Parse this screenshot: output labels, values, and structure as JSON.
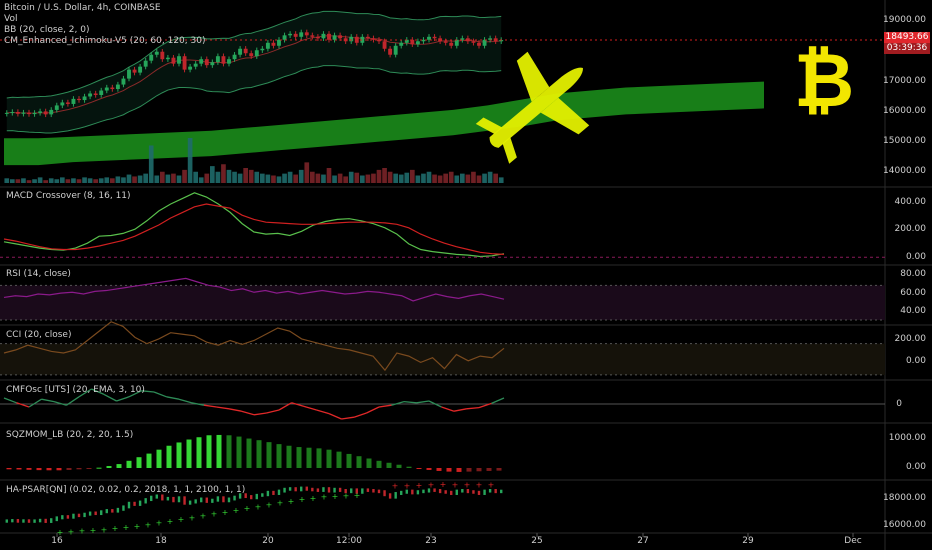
{
  "header": {
    "title": "Bitcoin / U.S. Dollar, 4h, COINBASE",
    "studies": [
      "Vol",
      "BB (20, close, 2, 0)",
      "CM_Enhanced_Ichimoku-V5 (20, 60, 120, 30)"
    ]
  },
  "price_tags": {
    "last_price": "18493.66",
    "countdown": "03:39:36"
  },
  "colors": {
    "background": "#000000",
    "up": "#26a65b",
    "down": "#c0262c",
    "cloud": "#1e9e1e",
    "bb": "#2e8b57",
    "macd": "#59c04c",
    "signal": "#d02020",
    "rsi": "#8b1a8b",
    "cci": "#7a4a1e",
    "cmf_pos": "#2e8b57",
    "cmf_neg": "#e02828",
    "plane": "#e4f000",
    "bitcoin_logo": "#f2e600"
  },
  "decorations": {
    "plane_icon": "airplane-icon",
    "logo_icon": "bitcoin-logo-icon",
    "logo_glyph": "₿"
  },
  "panes": {
    "macd": {
      "label": "MACD Crossover (8, 16, 11)",
      "ticks": [
        "400.00",
        "200.00",
        "0.00"
      ]
    },
    "rsi": {
      "label": "RSI (14, close)",
      "ticks": [
        "80.00",
        "60.00",
        "40.00"
      ]
    },
    "cci": {
      "label": "CCI (20, close)",
      "ticks": [
        "200.00",
        "0.00"
      ]
    },
    "cmf": {
      "label": "CMFOsc [UTS] (20, EMA, 3, 10)",
      "ticks": [
        "0"
      ]
    },
    "sqz": {
      "label": "SQZMOM_LB (20, 2, 20, 1.5)",
      "ticks": [
        "1000.00",
        "0.00"
      ]
    },
    "psar": {
      "label": "HA-PSAR[QN] (0.02, 0.02, 0.2, 2018, 1, 1, 2100, 1, 1)",
      "ticks": [
        "18000.00",
        "16000.00"
      ]
    }
  },
  "price_axis_ticks": [
    "19000.00",
    "18000.00",
    "17000.00",
    "16000.00",
    "15000.00",
    "14000.00"
  ],
  "x_axis_ticks": [
    "16",
    "18",
    "20",
    "12:00",
    "23",
    "25",
    "27",
    "29",
    "Dec"
  ],
  "chart_data": {
    "type": "candlestick",
    "title": "Bitcoin / U.S. Dollar, 4h, COINBASE",
    "x_ticks": [
      "16",
      "18",
      "20",
      "12:00",
      "23",
      "25",
      "27",
      "29",
      "Dec"
    ],
    "ylim": [
      13700,
      19700
    ],
    "closes": [
      16050,
      16080,
      16020,
      16060,
      16010,
      16050,
      16100,
      16000,
      16150,
      16300,
      16400,
      16350,
      16520,
      16480,
      16600,
      16700,
      16650,
      16800,
      16900,
      16850,
      17000,
      17200,
      17500,
      17400,
      17600,
      17800,
      18000,
      18100,
      17850,
      17900,
      17700,
      17950,
      17500,
      17600,
      17700,
      17850,
      17650,
      17750,
      17950,
      17700,
      17850,
      18000,
      18200,
      18050,
      17950,
      18150,
      18200,
      18400,
      18300,
      18500,
      18650,
      18700,
      18600,
      18750,
      18650,
      18600,
      18550,
      18700,
      18500,
      18650,
      18550,
      18450,
      18600,
      18400,
      18600,
      18550,
      18500,
      18450,
      18200,
      18000,
      18300,
      18400,
      18500,
      18350,
      18450,
      18500,
      18600,
      18550,
      18450,
      18400,
      18300,
      18500,
      18550,
      18450,
      18400,
      18300,
      18500,
      18550,
      18450,
      18493.66
    ],
    "volume": [
      5,
      4,
      4,
      5,
      3,
      4,
      6,
      3,
      5,
      4,
      6,
      4,
      5,
      4,
      6,
      5,
      4,
      5,
      6,
      5,
      7,
      6,
      9,
      7,
      8,
      10,
      40,
      8,
      12,
      9,
      10,
      8,
      14,
      48,
      12,
      6,
      10,
      18,
      12,
      20,
      14,
      12,
      10,
      16,
      14,
      12,
      10,
      9,
      8,
      7,
      10,
      12,
      9,
      14,
      22,
      12,
      10,
      9,
      16,
      8,
      10,
      7,
      12,
      11,
      8,
      9,
      10,
      14,
      16,
      12,
      10,
      9,
      11,
      14,
      8,
      10,
      12,
      9,
      8,
      10,
      12,
      8,
      10,
      9,
      12,
      8,
      10,
      12,
      10,
      6
    ],
    "macd_line": [
      110,
      95,
      80,
      65,
      55,
      50,
      65,
      100,
      150,
      155,
      170,
      200,
      260,
      330,
      380,
      420,
      460,
      430,
      380,
      320,
      240,
      180,
      165,
      170,
      155,
      185,
      230,
      255,
      270,
      275,
      260,
      240,
      210,
      165,
      95,
      55,
      40,
      30,
      20,
      15,
      5,
      10,
      25
    ],
    "signal_line": [
      130,
      115,
      95,
      75,
      60,
      55,
      55,
      65,
      80,
      100,
      120,
      150,
      190,
      230,
      280,
      320,
      360,
      380,
      365,
      350,
      300,
      270,
      250,
      245,
      240,
      235,
      235,
      240,
      245,
      250,
      250,
      250,
      245,
      235,
      210,
      165,
      130,
      100,
      75,
      55,
      35,
      25,
      20
    ],
    "rsi": [
      56,
      58,
      57,
      60,
      59,
      61,
      62,
      60,
      63,
      64,
      66,
      68,
      70,
      72,
      74,
      76,
      78,
      74,
      70,
      68,
      64,
      66,
      62,
      64,
      61,
      63,
      60,
      62,
      64,
      62,
      60,
      61,
      63,
      62,
      60,
      58,
      52,
      56,
      60,
      57,
      55,
      58,
      60,
      57,
      54
    ],
    "cci": [
      40,
      60,
      90,
      70,
      50,
      40,
      60,
      120,
      180,
      240,
      210,
      140,
      100,
      130,
      170,
      160,
      150,
      110,
      90,
      120,
      95,
      120,
      160,
      200,
      180,
      130,
      110,
      90,
      70,
      60,
      40,
      20,
      -70,
      40,
      20,
      -20,
      10,
      -60,
      30,
      -10,
      20,
      10,
      70
    ],
    "cmf": [
      0.1,
      0.02,
      -0.05,
      0.08,
      0.04,
      -0.02,
      0.12,
      0.25,
      0.16,
      0.05,
      0.12,
      0.22,
      0.2,
      0.12,
      0.08,
      0.02,
      -0.02,
      -0.05,
      -0.08,
      -0.12,
      -0.18,
      -0.15,
      -0.1,
      0.02,
      -0.04,
      -0.1,
      -0.16,
      -0.25,
      -0.22,
      -0.15,
      -0.05,
      -0.02,
      0.04,
      0.02,
      0.05,
      -0.05,
      -0.12,
      -0.08,
      -0.06,
      0.01,
      0.1
    ],
    "sqz": [
      -40,
      -45,
      -55,
      -65,
      -70,
      -70,
      -60,
      -40,
      -20,
      10,
      60,
      120,
      220,
      330,
      440,
      560,
      680,
      780,
      870,
      940,
      1000,
      1010,
      1000,
      960,
      900,
      850,
      790,
      730,
      680,
      640,
      620,
      600,
      560,
      500,
      430,
      360,
      290,
      220,
      160,
      100,
      40,
      -20,
      -60,
      -90,
      -110,
      -120,
      -110,
      -100,
      -90,
      -80
    ],
    "psar_low": [
      14900,
      14950,
      15000,
      15050,
      15100,
      15200,
      15300,
      15400,
      15500,
      15650,
      15800,
      15950,
      16100,
      16250,
      16400,
      16550,
      16700,
      16850,
      17000,
      17150,
      17300,
      17450,
      17600,
      17700,
      17800,
      17850,
      17900,
      17950
    ],
    "psar_high": [
      18700,
      18720,
      18760,
      18800,
      18820,
      18810,
      18800,
      18790,
      18780
    ]
  }
}
